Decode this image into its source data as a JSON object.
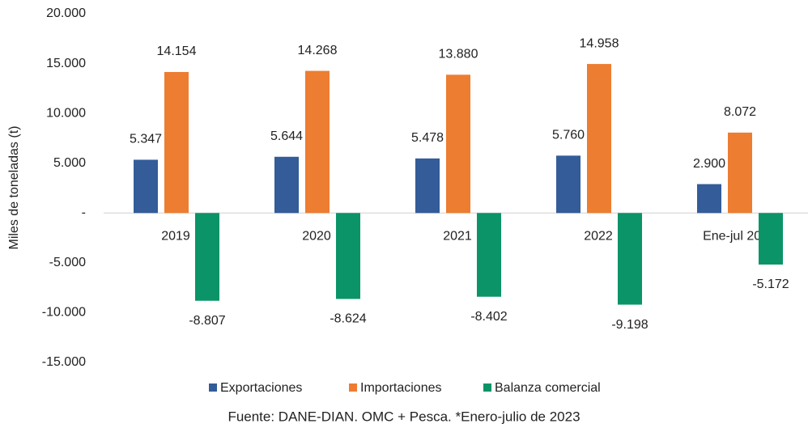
{
  "chart_data": {
    "type": "bar",
    "y_label": "Miles de toneladas (t)",
    "source": "Fuente: DANE-DIAN. OMC + Pesca. *Enero-julio de 2023",
    "categories": [
      "2019",
      "2020",
      "2021",
      "2022",
      "Ene-jul 2023"
    ],
    "series": [
      {
        "name": "Exportaciones",
        "color": "#335c99",
        "values": [
          5347,
          5644,
          5478,
          5760,
          2900
        ],
        "value_labels": [
          "5.347",
          "5.644",
          "5.478",
          "5.760",
          "2.900"
        ]
      },
      {
        "name": "Importaciones",
        "color": "#ed7d31",
        "values": [
          14154,
          14268,
          13880,
          14958,
          8072
        ],
        "value_labels": [
          "14.154",
          "14.268",
          "13.880",
          "14.958",
          "8.072"
        ]
      },
      {
        "name": "Balanza comercial",
        "color": "#0a9467",
        "values": [
          -8807,
          -8624,
          -8402,
          -9198,
          -5172
        ],
        "value_labels": [
          "-8.807",
          "-8.624",
          "-8.402",
          "-9.198",
          "-5.172"
        ]
      }
    ],
    "ylim": [
      -15000,
      20000
    ],
    "yticks": [
      {
        "value": -15000,
        "label": "-15.000"
      },
      {
        "value": -10000,
        "label": "-10.000"
      },
      {
        "value": -5000,
        "label": "-5.000"
      },
      {
        "value": 0,
        "label": "-"
      },
      {
        "value": 5000,
        "label": "5.000"
      },
      {
        "value": 10000,
        "label": "10.000"
      },
      {
        "value": 15000,
        "label": "15.000"
      },
      {
        "value": 20000,
        "label": "20.000"
      }
    ],
    "grid": false,
    "legend": "bottom"
  }
}
